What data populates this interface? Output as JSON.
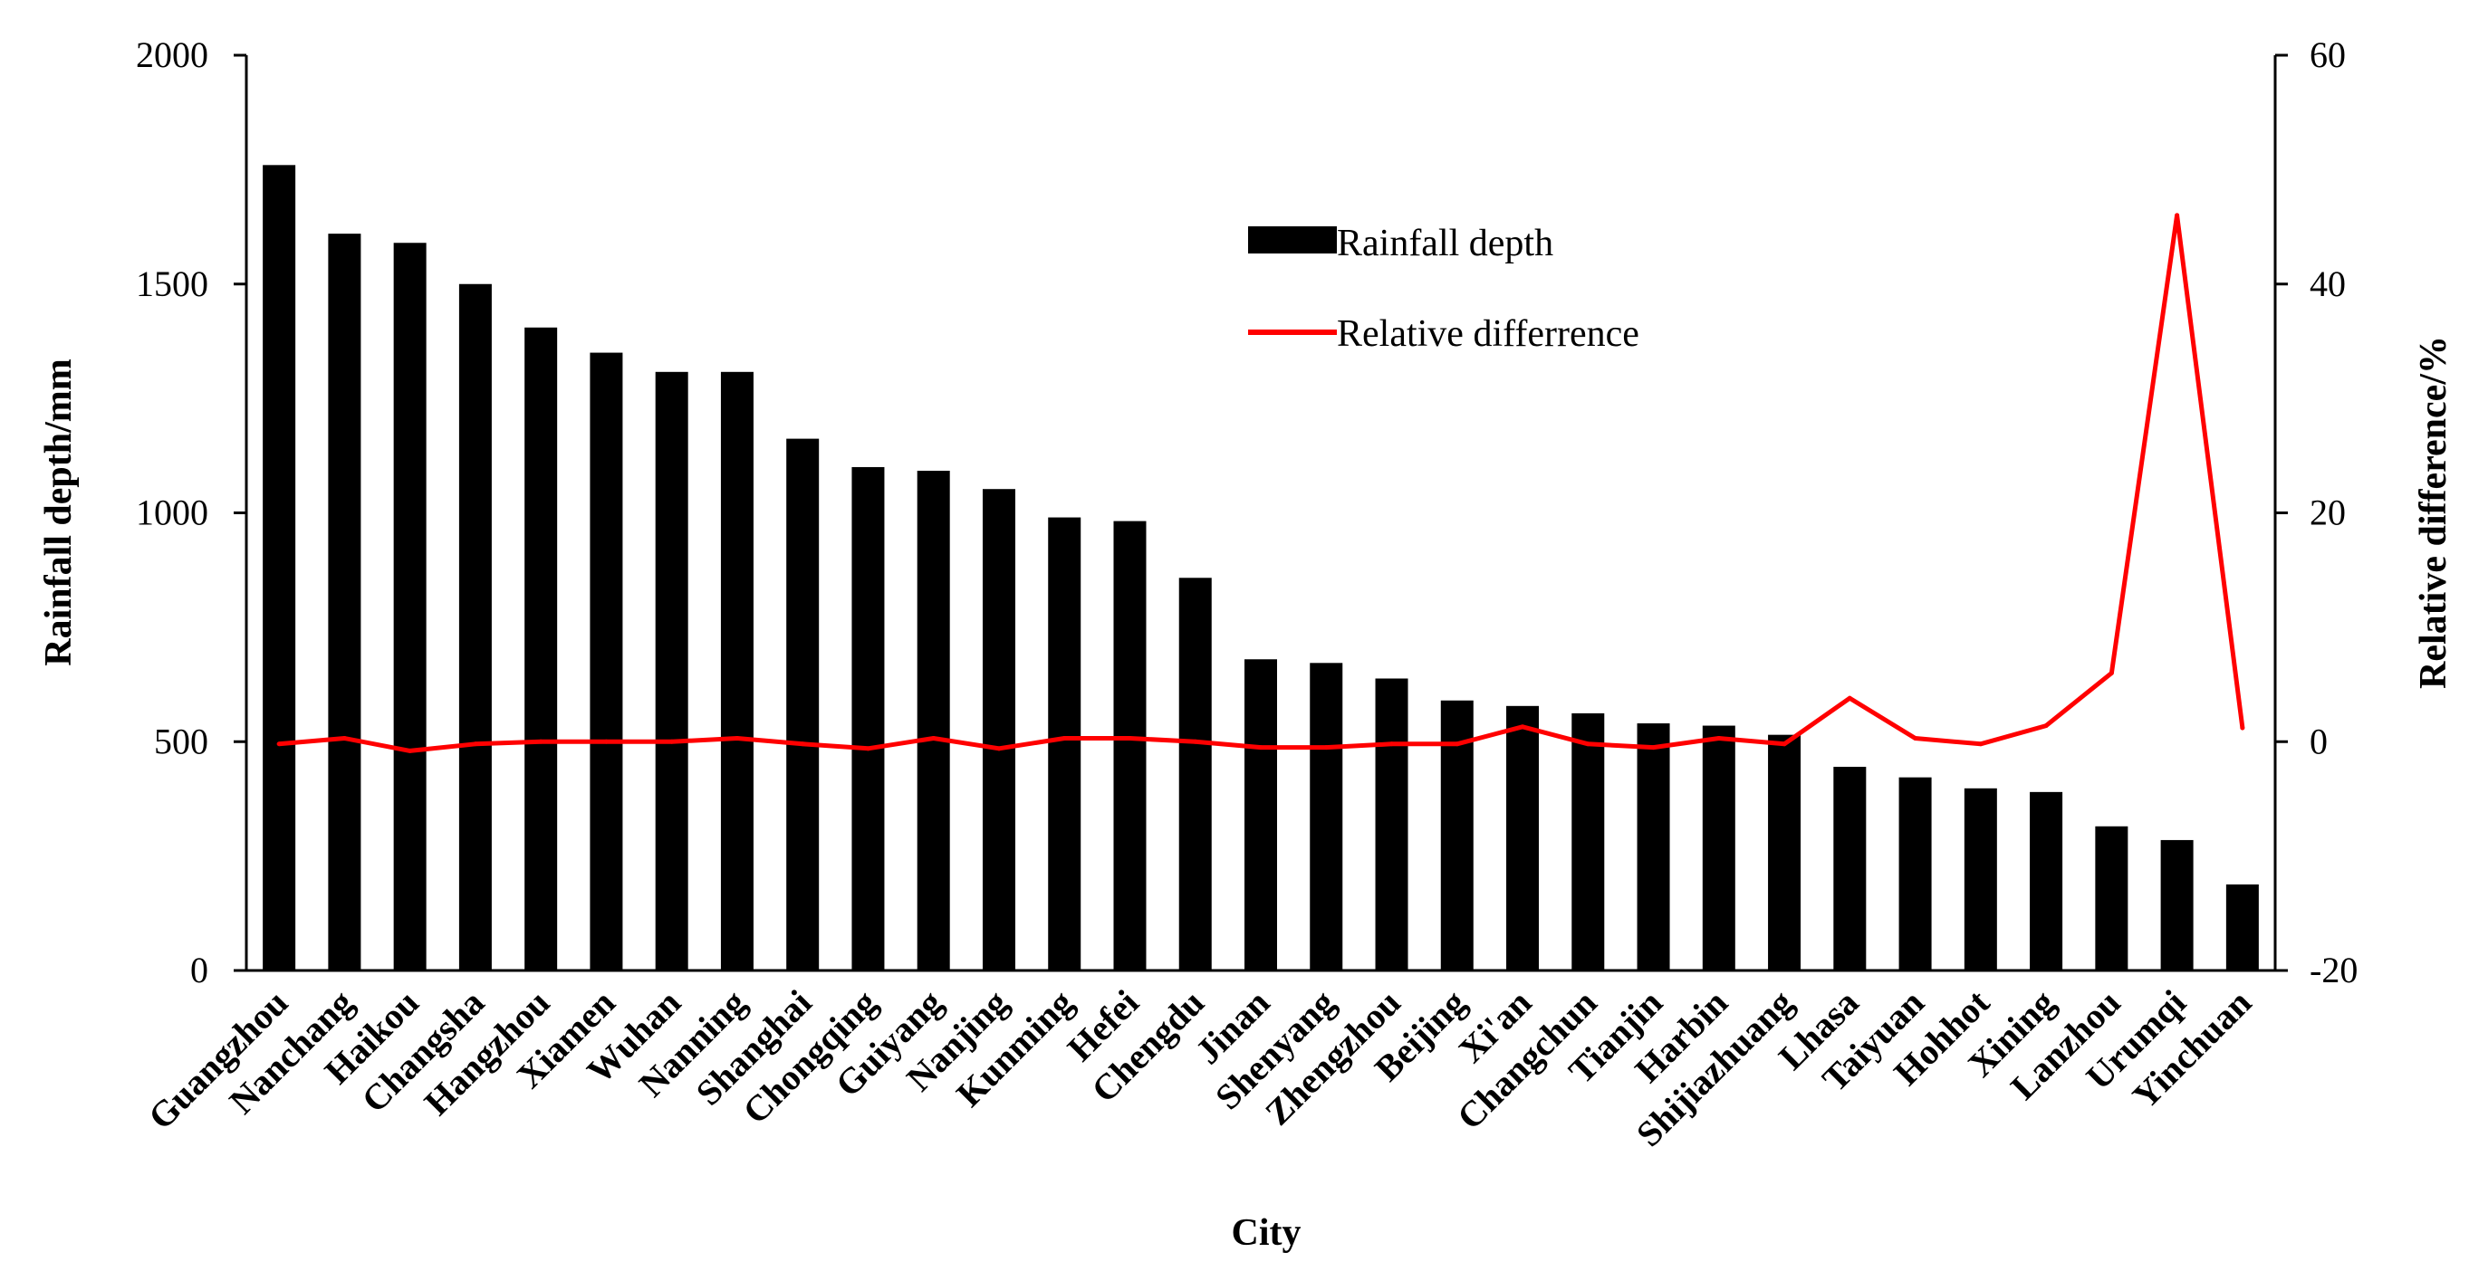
{
  "chart_data": {
    "type": "bar",
    "xlabel": "City",
    "ylabel": "Rainfall depth/mm",
    "y2label": "Relative difference/%",
    "ylim": [
      0,
      2000
    ],
    "yticks": [
      0,
      500,
      1000,
      1500,
      2000
    ],
    "y2lim": [
      -20,
      60
    ],
    "y2ticks": [
      -20,
      0,
      20,
      40,
      60
    ],
    "grid": false,
    "legend_position": "top-center",
    "categories": [
      "Guangzhou",
      "Nanchang",
      "Haikou",
      "Changsha",
      "Hangzhou",
      "Xiamen",
      "Wuhan",
      "Nanning",
      "Shanghai",
      "Chongqing",
      "Guiyang",
      "Nanjing",
      "Kunming",
      "Hefei",
      "Chengdu",
      "Jinan",
      "Shenyang",
      "Zhengzhou",
      "Beijing",
      "Xi'an",
      "Changchun",
      "Tianjin",
      "Harbin",
      "Shijiazhuang",
      "Lhasa",
      "Taiyuan",
      "Hohhot",
      "Xining",
      "Lanzhou",
      "Urumqi",
      "Yinchuan"
    ],
    "series": [
      {
        "name": "Rainfall depth",
        "type": "bar",
        "axis": "left",
        "color": "#000000",
        "values": [
          1760,
          1610,
          1590,
          1500,
          1405,
          1350,
          1308,
          1308,
          1162,
          1100,
          1092,
          1052,
          990,
          982,
          858,
          680,
          672,
          638,
          590,
          578,
          562,
          540,
          535,
          515,
          445,
          422,
          398,
          390,
          315,
          285,
          188
        ]
      },
      {
        "name": "Relative differrence",
        "type": "line",
        "axis": "right",
        "color": "#ff0000",
        "values": [
          -0.2,
          0.3,
          -0.8,
          -0.2,
          0.0,
          0.0,
          0.0,
          0.3,
          -0.2,
          -0.6,
          0.3,
          -0.6,
          0.3,
          0.3,
          0.0,
          -0.5,
          -0.5,
          -0.2,
          -0.2,
          1.3,
          -0.2,
          -0.5,
          0.3,
          -0.2,
          3.8,
          0.3,
          -0.2,
          1.4,
          6.0,
          46.0,
          1.2
        ]
      }
    ]
  }
}
